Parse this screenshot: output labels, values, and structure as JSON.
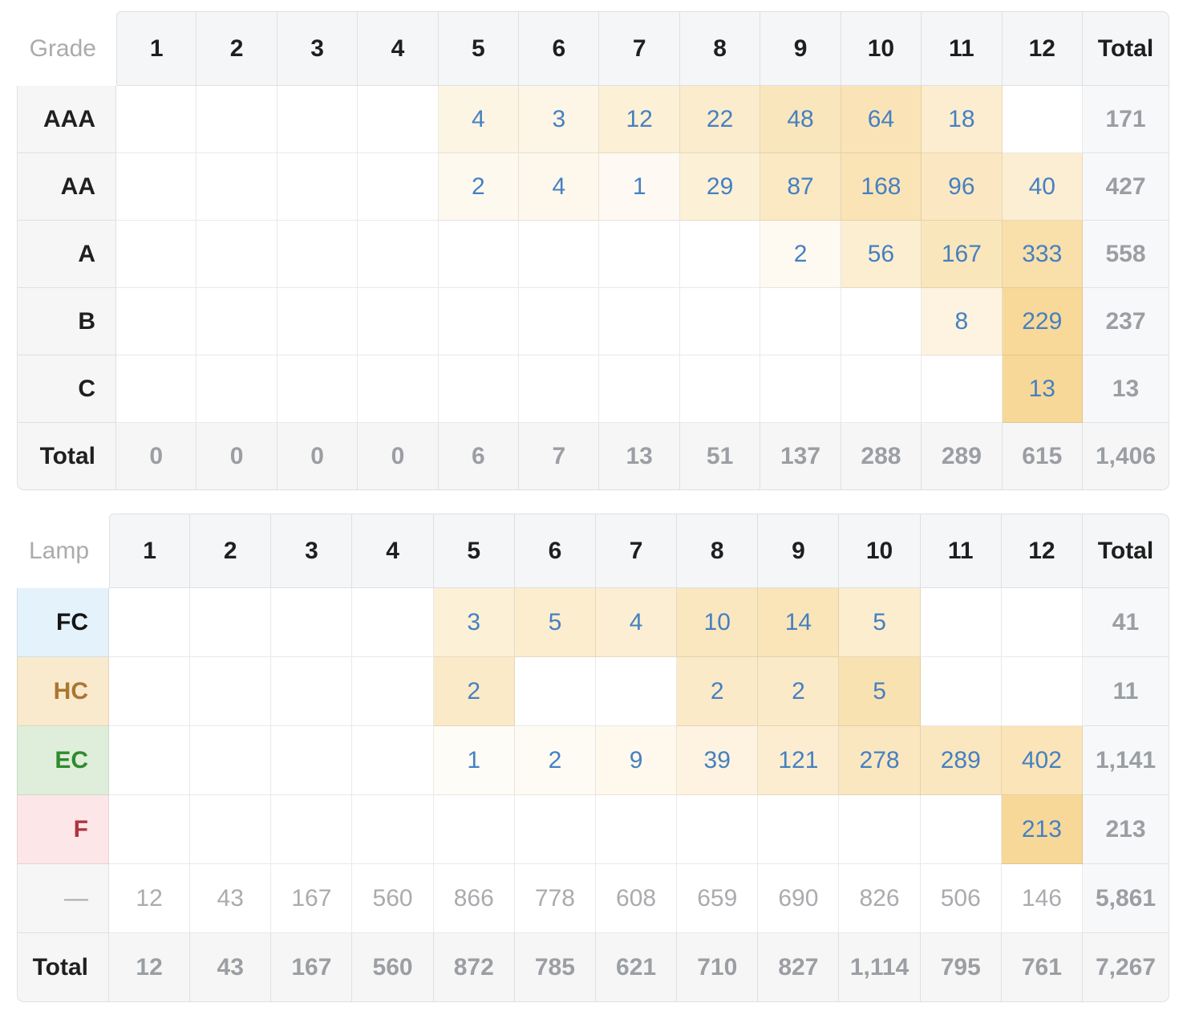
{
  "colors": {
    "value_blue": "#4580c2",
    "total_gray": "#9b9ea2",
    "faint_gray": "#a9abae",
    "dark_text": "#1f1f1f",
    "muted_label": "#ababab",
    "header_bg": "#f4f6f8",
    "label_bg": "#f6f6f6",
    "total_col_bg": "#f7f8f9",
    "heat_base": "#f0b232",
    "fc_bg": "#e4f2fb",
    "fc_text": "#151515",
    "hc_bg": "#faeacd",
    "hc_text": "#a9772f",
    "ec_bg": "#dfeeda",
    "ec_text": "#2e8b2e",
    "f_bg": "#fce6e7",
    "f_text": "#b03340"
  },
  "tables": [
    {
      "corner_label": "Grade",
      "columns": [
        "1",
        "2",
        "3",
        "4",
        "5",
        "6",
        "7",
        "8",
        "9",
        "10",
        "11",
        "12",
        "Total"
      ],
      "rows": [
        {
          "label": "AAA",
          "variant": "plain",
          "heat": true,
          "cells": [
            "",
            "",
            "",
            "",
            "4",
            "3",
            "12",
            "22",
            "48",
            "64",
            "18",
            ""
          ],
          "total": "171"
        },
        {
          "label": "AA",
          "variant": "plain",
          "heat": true,
          "cells": [
            "",
            "",
            "",
            "",
            "2",
            "4",
            "1",
            "29",
            "87",
            "168",
            "96",
            "40"
          ],
          "total": "427"
        },
        {
          "label": "A",
          "variant": "plain",
          "heat": true,
          "cells": [
            "",
            "",
            "",
            "",
            "",
            "",
            "",
            "",
            "2",
            "56",
            "167",
            "333"
          ],
          "total": "558"
        },
        {
          "label": "B",
          "variant": "plain",
          "heat": true,
          "cells": [
            "",
            "",
            "",
            "",
            "",
            "",
            "",
            "",
            "",
            "",
            "8",
            "229"
          ],
          "total": "237"
        },
        {
          "label": "C",
          "variant": "plain",
          "heat": true,
          "cells": [
            "",
            "",
            "",
            "",
            "",
            "",
            "",
            "",
            "",
            "",
            "",
            "13"
          ],
          "total": "13"
        }
      ],
      "total_row": {
        "label": "Total",
        "cells": [
          "0",
          "0",
          "0",
          "0",
          "6",
          "7",
          "13",
          "51",
          "137",
          "288",
          "289",
          "615"
        ],
        "total": "1,406"
      }
    },
    {
      "corner_label": "Lamp",
      "columns": [
        "1",
        "2",
        "3",
        "4",
        "5",
        "6",
        "7",
        "8",
        "9",
        "10",
        "11",
        "12",
        "Total"
      ],
      "rows": [
        {
          "label": "FC",
          "variant": "fc",
          "heat": true,
          "cells": [
            "",
            "",
            "",
            "",
            "3",
            "5",
            "4",
            "10",
            "14",
            "5",
            "",
            ""
          ],
          "total": "41"
        },
        {
          "label": "HC",
          "variant": "hcv",
          "heat": true,
          "cells": [
            "",
            "",
            "",
            "",
            "2",
            "",
            "",
            "2",
            "2",
            "5",
            "",
            ""
          ],
          "total": "11"
        },
        {
          "label": "EC",
          "variant": "ec",
          "heat": true,
          "cells": [
            "",
            "",
            "",
            "",
            "1",
            "2",
            "9",
            "39",
            "121",
            "278",
            "289",
            "402"
          ],
          "total": "1,141"
        },
        {
          "label": "F",
          "variant": "f",
          "heat": true,
          "cells": [
            "",
            "",
            "",
            "",
            "",
            "",
            "",
            "",
            "",
            "",
            "",
            "213"
          ],
          "total": "213"
        },
        {
          "label": "—",
          "variant": "dash",
          "heat": false,
          "cells": [
            "12",
            "43",
            "167",
            "560",
            "866",
            "778",
            "608",
            "659",
            "690",
            "826",
            "506",
            "146"
          ],
          "total": "5,861"
        }
      ],
      "total_row": {
        "label": "Total",
        "cells": [
          "12",
          "43",
          "167",
          "560",
          "872",
          "785",
          "621",
          "710",
          "827",
          "1,114",
          "795",
          "761"
        ],
        "total": "7,267"
      }
    }
  ],
  "chart_data": [
    {
      "type": "heatmap",
      "title": "Grade",
      "x": [
        "1",
        "2",
        "3",
        "4",
        "5",
        "6",
        "7",
        "8",
        "9",
        "10",
        "11",
        "12"
      ],
      "rows": [
        "AAA",
        "AA",
        "A",
        "B",
        "C"
      ],
      "matrix": [
        [
          null,
          null,
          null,
          null,
          4,
          3,
          12,
          22,
          48,
          64,
          18,
          null
        ],
        [
          null,
          null,
          null,
          null,
          2,
          4,
          1,
          29,
          87,
          168,
          96,
          40
        ],
        [
          null,
          null,
          null,
          null,
          null,
          null,
          null,
          null,
          2,
          56,
          167,
          333
        ],
        [
          null,
          null,
          null,
          null,
          null,
          null,
          null,
          null,
          null,
          null,
          8,
          229
        ],
        [
          null,
          null,
          null,
          null,
          null,
          null,
          null,
          null,
          null,
          null,
          null,
          13
        ]
      ],
      "row_totals": [
        171,
        427,
        558,
        237,
        13
      ],
      "col_totals": [
        0,
        0,
        0,
        0,
        6,
        7,
        13,
        51,
        137,
        288,
        289,
        615
      ],
      "grand_total": 1406
    },
    {
      "type": "heatmap",
      "title": "Lamp",
      "x": [
        "1",
        "2",
        "3",
        "4",
        "5",
        "6",
        "7",
        "8",
        "9",
        "10",
        "11",
        "12"
      ],
      "rows": [
        "FC",
        "HC",
        "EC",
        "F",
        "—"
      ],
      "matrix": [
        [
          null,
          null,
          null,
          null,
          3,
          5,
          4,
          10,
          14,
          5,
          null,
          null
        ],
        [
          null,
          null,
          null,
          null,
          2,
          null,
          null,
          2,
          2,
          5,
          null,
          null
        ],
        [
          null,
          null,
          null,
          null,
          1,
          2,
          9,
          39,
          121,
          278,
          289,
          402
        ],
        [
          null,
          null,
          null,
          null,
          null,
          null,
          null,
          null,
          null,
          null,
          null,
          213
        ],
        [
          12,
          43,
          167,
          560,
          866,
          778,
          608,
          659,
          690,
          826,
          506,
          146
        ]
      ],
      "row_totals": [
        41,
        11,
        1141,
        213,
        5861
      ],
      "col_totals": [
        12,
        43,
        167,
        560,
        872,
        785,
        621,
        710,
        827,
        1114,
        795,
        761
      ],
      "grand_total": 7267
    }
  ]
}
